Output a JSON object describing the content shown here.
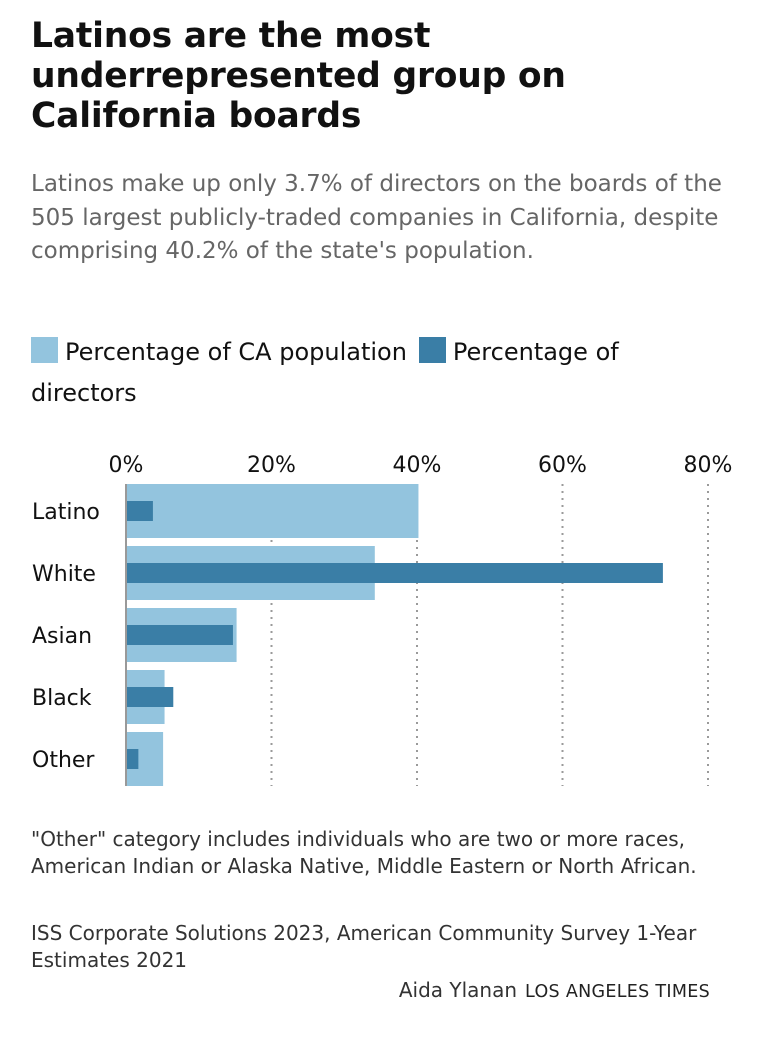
{
  "chart_data": {
    "type": "bar",
    "title": "Latinos are the most underrepresented group on California boards",
    "subtitle": "Latinos make up only 3.7% of directors on the boards of the 505 largest publicly-traded companies in California, despite comprising 40.2% of the state's population.",
    "categories": [
      "Latino",
      "White",
      "Asian",
      "Black",
      "Other"
    ],
    "series": [
      {
        "name": "Percentage of CA population",
        "values": [
          40.2,
          34.2,
          15.2,
          5.3,
          5.1
        ],
        "color": "#93c4de"
      },
      {
        "name": "Percentage of directors",
        "values": [
          3.7,
          73.8,
          14.7,
          6.5,
          1.7
        ],
        "color": "#3a7ea6"
      }
    ],
    "xlim": [
      0,
      80
    ],
    "xticks": [
      0,
      20,
      40,
      60,
      80
    ],
    "xtick_labels": [
      "0%",
      "20%",
      "40%",
      "60%",
      "80%"
    ],
    "grid": "vertical dotted",
    "legend": "top",
    "xlabel": "",
    "ylabel": ""
  },
  "notes": {
    "other_category": "\"Other\" category includes individuals who are two or more races, American Indian or Alaska Native, Middle Eastern or North African.",
    "source": "ISS Corporate Solutions 2023, American Community Survey 1-Year Estimates 2021"
  },
  "credit": {
    "author": "Aida Ylanan",
    "organization": "LOS ANGELES TIMES"
  }
}
